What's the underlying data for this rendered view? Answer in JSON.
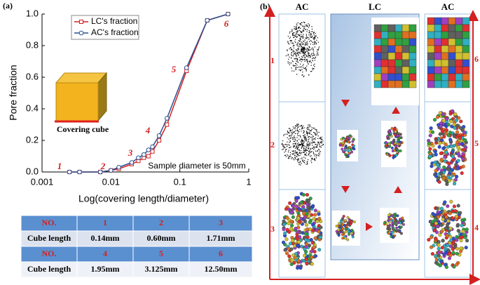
{
  "chart_data": {
    "type": "line",
    "panel_label": "(a)",
    "x_label": "Log(covering length/diameter)",
    "y_label": "Pore fraction",
    "x": [
      0.0025,
      0.0035,
      0.007,
      0.01,
      0.013,
      0.02,
      0.025,
      0.03,
      0.035,
      0.04,
      0.05,
      0.065,
      0.125,
      0.25,
      0.5
    ],
    "series": [
      {
        "name": "LC's fraction",
        "color": "#d42020",
        "marker": "square",
        "values": [
          0,
          0,
          0,
          0.01,
          0.02,
          0.05,
          0.07,
          0.09,
          0.1,
          0.13,
          0.2,
          0.3,
          0.64,
          0.96,
          1.0
        ]
      },
      {
        "name": "AC's fraction",
        "color": "#2a4f8f",
        "marker": "circle",
        "values": [
          0,
          0,
          0,
          0.01,
          0.03,
          0.06,
          0.09,
          0.11,
          0.14,
          0.16,
          0.23,
          0.34,
          0.66,
          0.96,
          1.0
        ]
      }
    ],
    "xlim": [
      0.001,
      1
    ],
    "xticks": [
      0.001,
      0.01,
      0.1,
      1
    ],
    "xscale": "log",
    "ylim": [
      0,
      1
    ],
    "yticks": [
      {
        "value": 0,
        "label": "0.0"
      },
      0.2,
      0.4,
      0.6,
      0.8,
      {
        "value": 1,
        "label": "1.0"
      }
    ],
    "legend": "upper left",
    "annotations": [
      "1",
      "2",
      "3",
      "4",
      "5",
      "6",
      "Sample diameter is 50mm",
      "Covering cube"
    ]
  },
  "table": {
    "rows": [
      [
        "NO.",
        "1",
        "2",
        "3"
      ],
      [
        "Cube length",
        "0.14mm",
        "0.60mm",
        "1.71mm"
      ],
      [
        "NO.",
        "4",
        "5",
        "6"
      ],
      [
        "Cube length",
        "1.95mm",
        "3.125mm",
        "12.50mm"
      ]
    ]
  },
  "panel_b": {
    "label": "(b)",
    "columns": [
      "AC",
      "LC",
      "AC"
    ],
    "left_rows": [
      "1",
      "2",
      "3"
    ],
    "right_rows": [
      "6",
      "5",
      "4"
    ]
  }
}
